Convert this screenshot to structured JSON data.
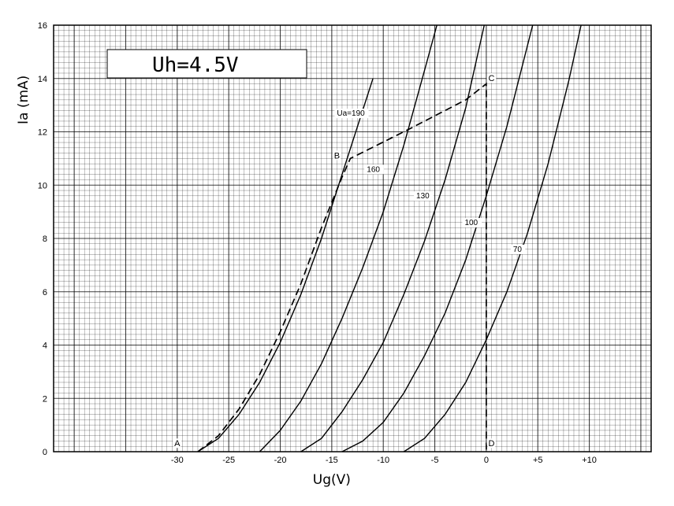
{
  "chart_data": {
    "type": "line",
    "title": "",
    "annotation_box": "Uh=4.5V",
    "xlabel": "Ug(V)",
    "ylabel": "Ia (mA)",
    "xlim": [
      -42,
      16
    ],
    "ylim": [
      0,
      16
    ],
    "x_ticks": [
      -30,
      -25,
      -20,
      -15,
      -10,
      -5,
      0,
      5,
      10
    ],
    "x_tick_labels": [
      "-30",
      "-25",
      "-20",
      "-15",
      "-10",
      "-5",
      "0",
      "+5",
      "+10"
    ],
    "y_ticks": [
      0,
      2,
      4,
      6,
      8,
      10,
      12,
      14,
      16
    ],
    "y_tick_labels": [
      "0",
      "2",
      "4",
      "6",
      "8",
      "10",
      "12",
      "14",
      "16"
    ],
    "grid": true,
    "series": [
      {
        "name": "Ua=190",
        "x": [
          -28,
          -26,
          -24,
          -22,
          -20,
          -18,
          -16,
          -14,
          -12.5,
          -11
        ],
        "y": [
          0,
          0.5,
          1.4,
          2.6,
          4.1,
          5.9,
          8.0,
          10.4,
          12.2,
          14.0
        ]
      },
      {
        "name": "160",
        "x": [
          -22,
          -20,
          -18,
          -16,
          -14,
          -12,
          -10,
          -8,
          -6,
          -4.8
        ],
        "y": [
          0,
          0.8,
          1.9,
          3.3,
          5.0,
          6.9,
          9.0,
          11.5,
          14.3,
          16.0
        ]
      },
      {
        "name": "130",
        "x": [
          -18,
          -16,
          -14,
          -12,
          -10,
          -8,
          -6,
          -4,
          -2,
          -0.2
        ],
        "y": [
          0,
          0.5,
          1.5,
          2.7,
          4.1,
          5.9,
          7.9,
          10.2,
          12.9,
          16.0
        ]
      },
      {
        "name": "100",
        "x": [
          -14,
          -12,
          -10,
          -8,
          -6,
          -4,
          -2,
          0,
          2,
          4.5
        ],
        "y": [
          0,
          0.4,
          1.1,
          2.2,
          3.6,
          5.2,
          7.2,
          9.6,
          12.2,
          16.0
        ]
      },
      {
        "name": "70",
        "x": [
          -8,
          -6,
          -4,
          -2,
          0,
          2,
          4,
          6,
          8,
          9.2
        ],
        "y": [
          0,
          0.5,
          1.4,
          2.6,
          4.2,
          6.0,
          8.2,
          10.8,
          13.9,
          16.0
        ]
      }
    ],
    "load_line": {
      "x": [
        -28,
        -26,
        -24,
        -22,
        -20,
        -18,
        -16,
        -14,
        -13.2,
        -7.5,
        -2,
        0,
        0
      ],
      "y": [
        0,
        0.6,
        1.6,
        2.9,
        4.5,
        6.3,
        8.4,
        10.3,
        11.0,
        12.1,
        13.2,
        13.8,
        0
      ]
    },
    "points": [
      {
        "label": "A",
        "x": -30,
        "y": 0.2
      },
      {
        "label": "B",
        "x": -14.5,
        "y": 11.0
      },
      {
        "label": "C",
        "x": 0.5,
        "y": 13.9
      },
      {
        "label": "D",
        "x": 0.5,
        "y": 0.2
      }
    ]
  }
}
